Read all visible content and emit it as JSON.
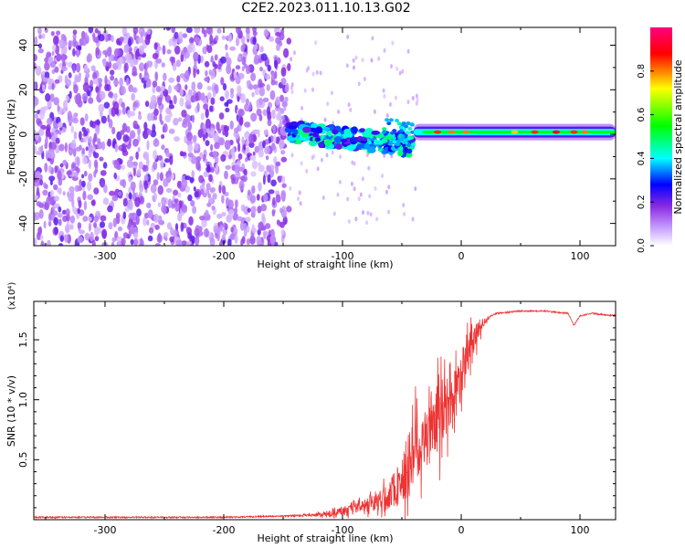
{
  "figure": {
    "title": "C2E2.2023.011.10.13.G02"
  },
  "chart_data": [
    {
      "type": "heatmap",
      "title": "C2E2.2023.011.10.13.G02",
      "xlabel": "Height of straight line (km)",
      "ylabel": "Frequency (Hz)",
      "xlim": [
        -360,
        130
      ],
      "ylim": [
        -50,
        48
      ],
      "xticks": [
        -300,
        -200,
        -100,
        0,
        100
      ],
      "yticks": [
        -40,
        -20,
        0,
        20,
        40
      ],
      "colorbar": {
        "label": "Normalized spectral amplitude",
        "range": [
          0.0,
          1.0
        ],
        "ticks": [
          "0.0",
          "0.2",
          "0.4",
          "0.6",
          "0.8"
        ],
        "colormap": [
          "#ffffff",
          "#c8a0ff",
          "#8a2be2",
          "#0000ff",
          "#00ffff",
          "#00ff00",
          "#ffff00",
          "#ff0000",
          "#ff0080"
        ]
      },
      "regions": [
        {
          "label": "noise",
          "x": [
            -360,
            -145
          ],
          "y": [
            -50,
            48
          ],
          "amplitude": 0.15
        },
        {
          "label": "signal onset",
          "x": [
            -145,
            -40
          ],
          "y": [
            -10,
            12
          ],
          "amplitude": 0.3
        },
        {
          "label": "steady signal",
          "x": [
            -40,
            130
          ],
          "frequency": 1,
          "amplitude": 0.55
        }
      ],
      "grid": false
    },
    {
      "type": "line",
      "xlabel": "Height of straight line (km)",
      "ylabel": "SNR (10 * v/v)",
      "y_multiplier": "(x10⁴)",
      "xlim": [
        -360,
        130
      ],
      "ylim": [
        0,
        1.82
      ],
      "xticks": [
        -300,
        -200,
        -100,
        0,
        100
      ],
      "yticks": [
        "0.5",
        "1.0",
        "1.5"
      ],
      "series": [
        {
          "color": "#ee3333",
          "x": [
            -360,
            -300,
            -250,
            -200,
            -150,
            -125,
            -110,
            -100,
            -90,
            -80,
            -70,
            -60,
            -50,
            -45,
            -40,
            -35,
            -30,
            -25,
            -20,
            -15,
            -10,
            -5,
            0,
            5,
            10,
            15,
            20,
            25,
            30,
            40,
            50,
            60,
            70,
            80,
            90,
            95,
            100,
            110,
            120,
            130
          ],
          "y": [
            0.02,
            0.02,
            0.02,
            0.02,
            0.03,
            0.04,
            0.05,
            0.07,
            0.09,
            0.12,
            0.15,
            0.22,
            0.32,
            0.45,
            0.6,
            0.65,
            0.68,
            0.7,
            0.8,
            0.9,
            0.95,
            1.1,
            1.2,
            1.4,
            1.5,
            1.6,
            1.65,
            1.7,
            1.72,
            1.73,
            1.74,
            1.74,
            1.74,
            1.73,
            1.72,
            1.62,
            1.7,
            1.72,
            1.71,
            1.7
          ],
          "noise": [
            0,
            0,
            0,
            0,
            0,
            0.02,
            0.04,
            0.06,
            0.08,
            0.1,
            0.14,
            0.25,
            0.4,
            0.55,
            0.6,
            0.55,
            0.5,
            0.5,
            0.55,
            0.5,
            0.45,
            0.4,
            0.35,
            0.3,
            0.25,
            0.15,
            0.05,
            0,
            0,
            0,
            0,
            0,
            0,
            0,
            0,
            0,
            0,
            0,
            0,
            0
          ]
        }
      ],
      "grid": false
    }
  ]
}
